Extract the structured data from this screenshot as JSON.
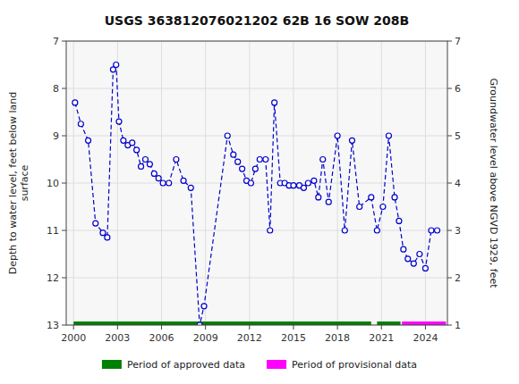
{
  "chart_data": {
    "type": "line",
    "title": "USGS 363812076021202 62B 16 SOW 208B",
    "ylabel": "Depth to water level, feet below land\nsurface",
    "y2label": "Groundwater level above NGVD 1929, feet",
    "xlim": [
      1999.5,
      2025.5
    ],
    "xticks": [
      2000,
      2003,
      2006,
      2009,
      2012,
      2015,
      2018,
      2021,
      2024
    ],
    "ylim": [
      13.0,
      7.0
    ],
    "yticks": [
      7,
      8,
      9,
      10,
      11,
      12,
      13
    ],
    "y2lim": [
      1.0,
      7.0
    ],
    "y2ticks": [
      1,
      2,
      3,
      4,
      5,
      6,
      7
    ],
    "grid": true,
    "legend": "bottom",
    "x": [
      2000.1,
      2000.5,
      2001.0,
      2001.5,
      2002.0,
      2002.3,
      2002.7,
      2002.9,
      2003.1,
      2003.4,
      2003.7,
      2004.0,
      2004.3,
      2004.6,
      2004.9,
      2005.2,
      2005.5,
      2005.8,
      2006.1,
      2006.5,
      2007.0,
      2007.5,
      2008.0,
      2008.6,
      2008.9,
      2010.5,
      2010.9,
      2011.2,
      2011.5,
      2011.8,
      2012.1,
      2012.4,
      2012.7,
      2013.1,
      2013.4,
      2013.7,
      2014.1,
      2014.4,
      2014.7,
      2015.0,
      2015.4,
      2015.7,
      2016.0,
      2016.4,
      2016.7,
      2017.0,
      2017.4,
      2018.0,
      2018.5,
      2019.0,
      2019.5,
      2020.3,
      2020.7,
      2021.1,
      2021.5,
      2021.9,
      2022.2,
      2022.5,
      2022.8,
      2023.2,
      2023.6,
      2024.0,
      2024.4,
      2024.8
    ],
    "series": [
      {
        "color": "#0000cc",
        "line_style": "dashed",
        "marker": "circle",
        "values": [
          8.3,
          8.75,
          9.1,
          10.85,
          11.05,
          11.15,
          7.6,
          7.5,
          8.7,
          9.1,
          9.2,
          9.15,
          9.3,
          9.65,
          9.5,
          9.6,
          9.8,
          9.9,
          10.0,
          10.0,
          9.5,
          9.95,
          10.1,
          13.0,
          12.6,
          9.0,
          9.4,
          9.55,
          9.7,
          9.95,
          10.0,
          9.7,
          9.5,
          9.5,
          11.0,
          8.3,
          10.0,
          10.0,
          10.05,
          10.05,
          10.05,
          10.1,
          10.0,
          9.95,
          10.3,
          9.5,
          10.4,
          9.0,
          11.0,
          9.1,
          10.5,
          10.3,
          11.0,
          10.5,
          9.0,
          10.3,
          10.8,
          11.4,
          11.6,
          11.7,
          11.5,
          11.8,
          11.0,
          11.0
        ]
      }
    ],
    "periods": [
      {
        "name": "Period of approved data",
        "color": "#008000",
        "y": 13.0,
        "ranges": [
          [
            2000.0,
            2020.3
          ],
          [
            2020.7,
            2022.3
          ]
        ]
      },
      {
        "name": "Period of provisional data",
        "color": "#ff00ff",
        "y": 13.0,
        "ranges": [
          [
            2022.4,
            2025.4
          ]
        ]
      }
    ]
  }
}
